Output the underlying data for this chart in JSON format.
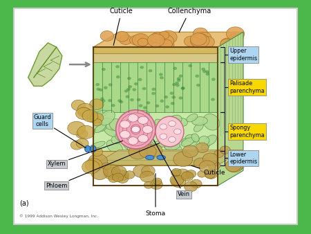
{
  "background_color": "#4cb84c",
  "panel_bg": "#ffffff",
  "labels": {
    "cuticle_top": "Cuticle",
    "collenchyma": "Collenchyma",
    "upper_epidermis": "Upper\nepidermis",
    "palisade": "Palisade\nparenchyma",
    "spongy": "Spongy\nparenchyma",
    "lower_epidermis": "Lower\nepidermis",
    "guard_cells": "Guard\ncells",
    "xylem": "Xylem",
    "phloem": "Phloem",
    "cuticle_bottom": "Cuticle",
    "vein": "Vein",
    "stoma": "Stoma",
    "label_a": "(a)",
    "copyright": "© 1999 Addison Wesley Longman, Inc."
  },
  "box_colors": {
    "upper_epidermis": "#aed6f1",
    "palisade": "#f9d800",
    "spongy": "#f9d800",
    "lower_epidermis": "#aed6f1",
    "guard_cells": "#aed6f1",
    "xylem": "#c8ccd0",
    "phloem": "#c8ccd0",
    "vein": "#c8ccd0"
  }
}
